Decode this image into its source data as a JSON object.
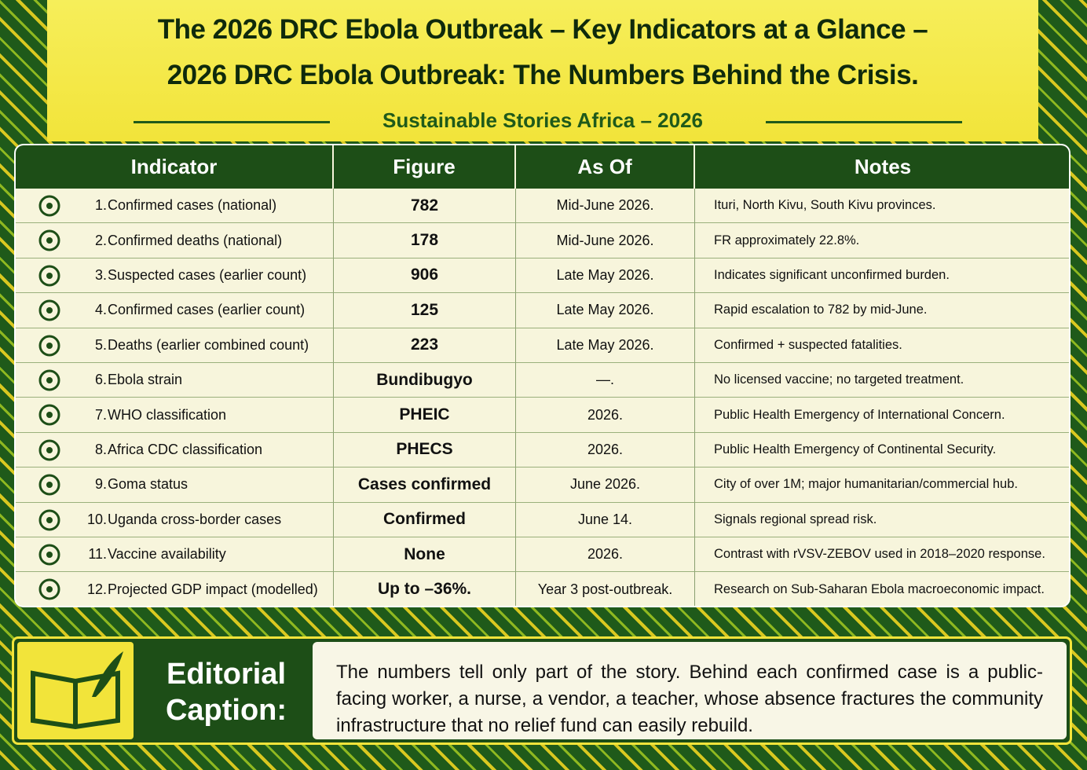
{
  "header": {
    "title_lines": [
      "The 2026 DRC Ebola Outbreak – Key Indicators at a Glance –",
      "2026 DRC Ebola Outbreak: The Numbers Behind the Crisis."
    ],
    "subtitle": "Sustainable Stories Africa – 2026"
  },
  "table": {
    "columns": [
      "Indicator",
      "Figure",
      "As Of",
      "Notes"
    ],
    "rows": [
      [
        "1.",
        "Confirmed cases (national)",
        782,
        "Mid-June 2026.",
        "Ituri, North Kivu, South Kivu provinces."
      ],
      [
        "2.",
        "Confirmed deaths (national)",
        178,
        "Mid-June 2026.",
        "FR approximately 22.8%."
      ],
      [
        "3.",
        "Suspected cases (earlier count)",
        906,
        "Late May 2026.",
        "Indicates significant unconfirmed burden."
      ],
      [
        "4.",
        "Confirmed cases (earlier count)",
        125,
        "Late May 2026.",
        "Rapid escalation to 782 by mid-June."
      ],
      [
        "5.",
        "Deaths (earlier combined count)",
        223,
        "Late May 2026.",
        "Confirmed + suspected fatalities."
      ],
      [
        "6.",
        "Ebola strain",
        "Bundibugyo",
        "—.",
        "No licensed vaccine; no targeted treatment."
      ],
      [
        "7.",
        "WHO classification",
        "PHEIC",
        "2026.",
        "Public Health Emergency of International Concern."
      ],
      [
        "8.",
        "Africa CDC classification",
        "PHECS",
        "2026.",
        "Public Health Emergency of Continental Security."
      ],
      [
        "9.",
        "Goma status",
        "Cases confirmed",
        "June 2026.",
        "City of over 1M; major humanitarian/commercial hub."
      ],
      [
        "10.",
        "Uganda cross-border cases",
        "Confirmed",
        "June 14.",
        "Signals regional spread risk."
      ],
      [
        "11.",
        "Vaccine availability",
        "None",
        "2026.",
        "Contrast with rVSV-ZEBOV used in 2018–2020 response."
      ],
      [
        "12.",
        "Projected GDP impact (modelled)",
        "Up to –36%.",
        "Year 3 post-outbreak.",
        "Research on Sub-Saharan Ebola macroeconomic impact."
      ]
    ]
  },
  "caption": {
    "label_lines": [
      "Editorial",
      "Caption:"
    ],
    "text": "The numbers tell only part of the story. Behind each confirmed case is a public-facing worker, a nurse, a vendor, a teacher, whose absence fractures the community infrastructure that no relief fund can easily rebuild."
  }
}
